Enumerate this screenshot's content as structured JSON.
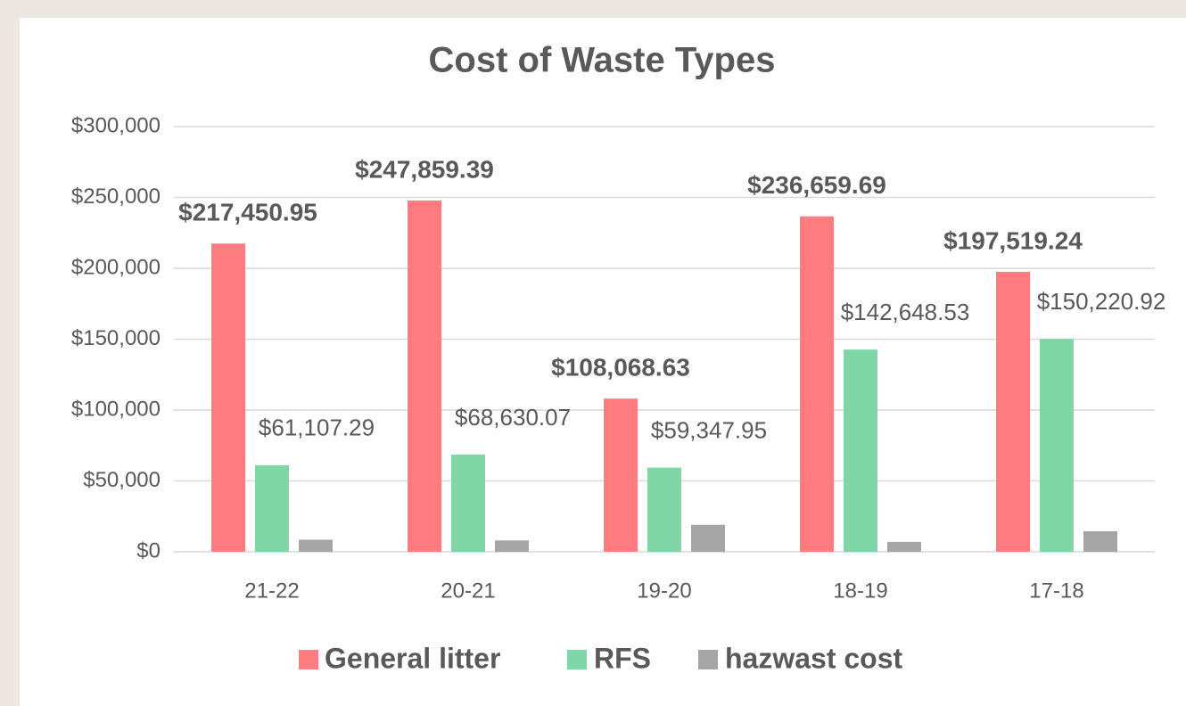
{
  "chart_data": {
    "type": "bar",
    "title": "Cost of Waste Types",
    "categories": [
      "21-22",
      "20-21",
      "19-20",
      "18-19",
      "17-18"
    ],
    "series": [
      {
        "name": "General litter",
        "color": "#ff7c80",
        "values": [
          217450.95,
          247859.39,
          108068.63,
          236659.69,
          197519.24
        ],
        "value_labels": [
          "$217,450.95",
          "$247,859.39",
          "$108,068.63",
          "$236,659.69",
          "$197,519.24"
        ]
      },
      {
        "name": "RFS",
        "color": "#7fd6a6",
        "values": [
          61107.29,
          68630.07,
          59347.95,
          142648.53,
          150220.92
        ],
        "value_labels": [
          "$61,107.29",
          "$68,630.07",
          "$59,347.95",
          "$142,648.53",
          "$150,220.92"
        ]
      },
      {
        "name": "hazwast cost",
        "color": "#a5a5a5",
        "values": [
          8500,
          8000,
          19000,
          7000,
          14500
        ]
      }
    ],
    "ylim": [
      0,
      300000
    ],
    "yticks": [
      {
        "value": 0,
        "label": "$0"
      },
      {
        "value": 50000,
        "label": "$50,000"
      },
      {
        "value": 100000,
        "label": "$100,000"
      },
      {
        "value": 150000,
        "label": "$150,000"
      },
      {
        "value": 200000,
        "label": "$200,000"
      },
      {
        "value": 250000,
        "label": "$250,000"
      },
      {
        "value": 300000,
        "label": "$300,000"
      }
    ],
    "grid": true,
    "legend": "bottom"
  }
}
